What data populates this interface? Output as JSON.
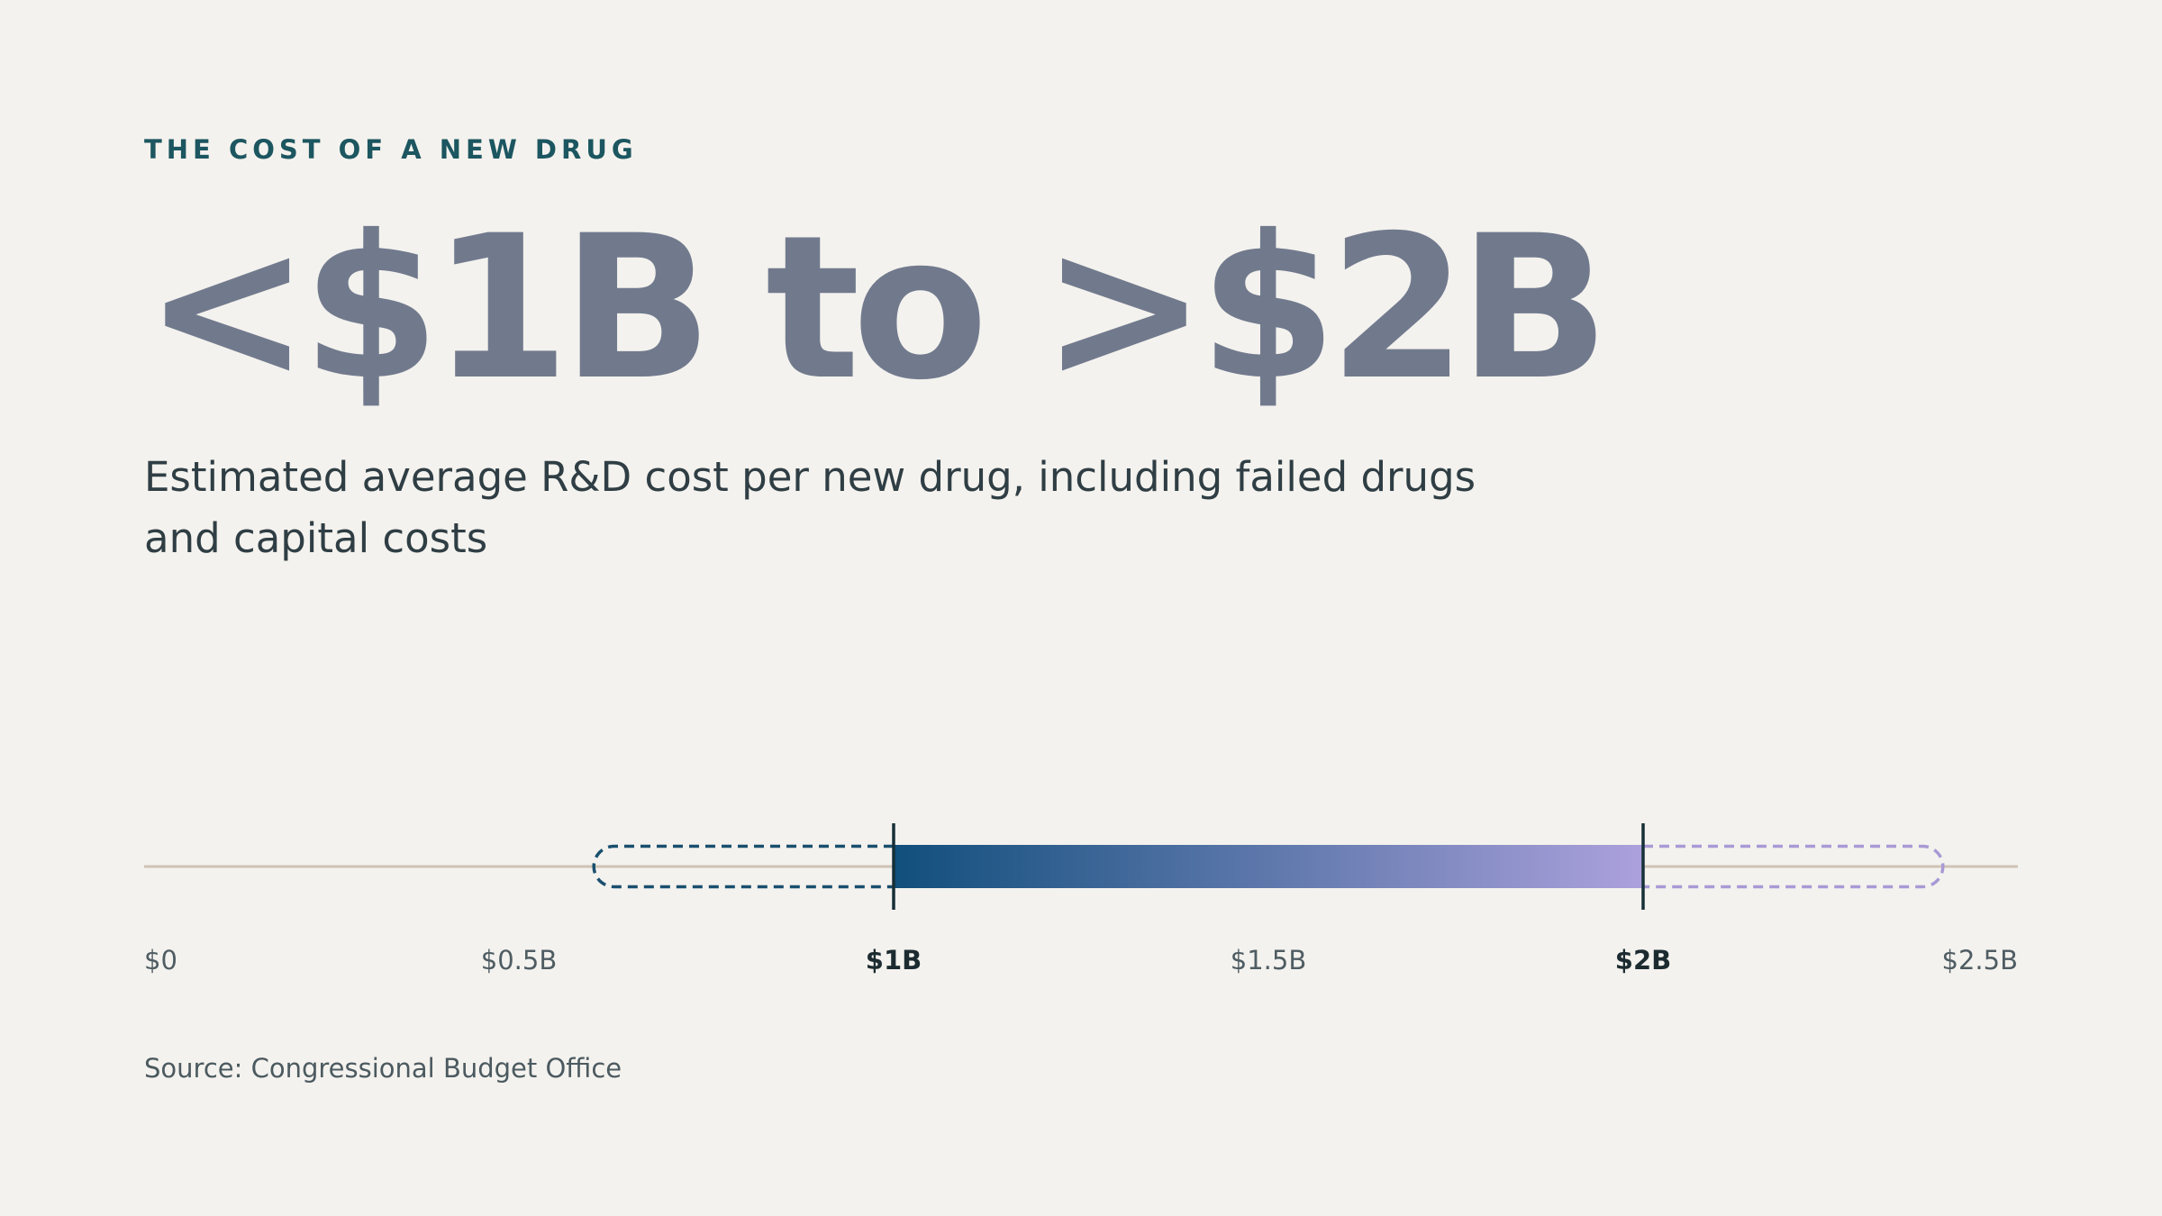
{
  "header": {
    "eyebrow": "THE COST OF A NEW DRUG",
    "headline": "<$1B to >$2B",
    "subtitle": "Estimated average R&D cost per new drug, including failed drugs and capital costs"
  },
  "source": "Source: Congressional Budget Office",
  "chart_data": {
    "type": "range",
    "title": "",
    "xlabel": "",
    "ylabel": "",
    "unit": "USD billions",
    "xlim": [
      0,
      2.5
    ],
    "axis_ticks": [
      {
        "value": 0,
        "label": "$0",
        "emphasis": false
      },
      {
        "value": 0.5,
        "label": "$0.5B",
        "emphasis": false
      },
      {
        "value": 1,
        "label": "$1B",
        "emphasis": true
      },
      {
        "value": 1.5,
        "label": "$1.5B",
        "emphasis": false
      },
      {
        "value": 2,
        "label": "$2B",
        "emphasis": true
      },
      {
        "value": 2.5,
        "label": "$2.5B",
        "emphasis": false
      }
    ],
    "range": {
      "low": 1.0,
      "high": 2.0
    },
    "uncertain_extensions": [
      {
        "from": 0.6,
        "to": 1.0,
        "style": "dashed",
        "color": "#1a4f6e"
      },
      {
        "from": 2.0,
        "to": 2.4,
        "style": "dashed",
        "color": "#a99ad6"
      }
    ],
    "gradient": {
      "start": "#114f7c",
      "end": "#aca1dc"
    },
    "grid": false,
    "legend": "none"
  }
}
